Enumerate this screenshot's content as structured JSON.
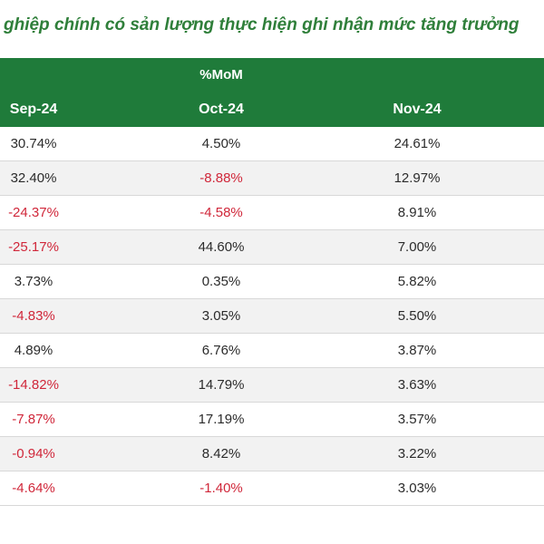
{
  "title": "ghiệp chính có sản lượng thực hiện ghi nhận mức tăng trưởng",
  "header": {
    "group_label": "%MoM",
    "columns": [
      "Sep-24",
      "Oct-24",
      "Nov-24"
    ]
  },
  "rows": [
    [
      "30.74%",
      "4.50%",
      "24.61%"
    ],
    [
      "32.40%",
      "-8.88%",
      "12.97%"
    ],
    [
      "-24.37%",
      "-4.58%",
      "8.91%"
    ],
    [
      "-25.17%",
      "44.60%",
      "7.00%"
    ],
    [
      "3.73%",
      "0.35%",
      "5.82%"
    ],
    [
      "-4.83%",
      "3.05%",
      "5.50%"
    ],
    [
      "4.89%",
      "6.76%",
      "3.87%"
    ],
    [
      "-14.82%",
      "14.79%",
      "3.63%"
    ],
    [
      "-7.87%",
      "17.19%",
      "3.57%"
    ],
    [
      "-0.94%",
      "8.42%",
      "3.22%"
    ],
    [
      "-4.64%",
      "-1.40%",
      "3.03%"
    ]
  ],
  "colors": {
    "header_bg": "#1f7b3a",
    "title_text": "#2f7f3a",
    "negative_text": "#d0273a",
    "alt_row_bg": "#f2f2f2"
  }
}
